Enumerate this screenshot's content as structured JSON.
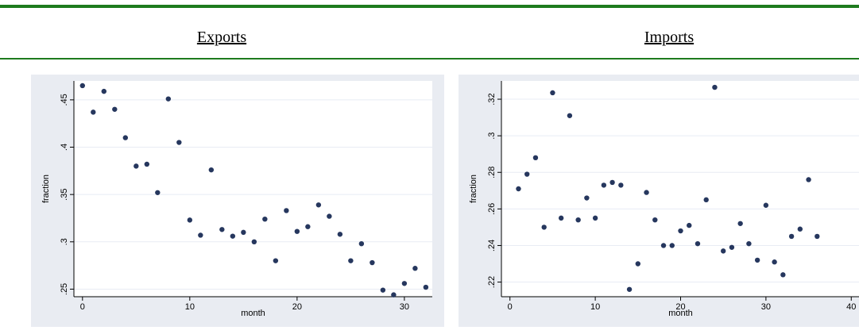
{
  "headings": {
    "exports": "Exports",
    "imports": "Imports"
  },
  "colors": {
    "rule": "#1e7b1e",
    "plot_bg": "#e9ecf2",
    "marker": "#26375e",
    "grid": "#ffffff"
  },
  "chart_data": [
    {
      "type": "scatter",
      "title": "",
      "xlabel": "month",
      "ylabel": "fraction",
      "xlim": [
        -0.8,
        32.6
      ],
      "ylim": [
        0.242,
        0.47
      ],
      "xticks": [
        0,
        10,
        20,
        30
      ],
      "xtick_labels": [
        "0",
        "10",
        "20",
        "30"
      ],
      "yticks": [
        0.25,
        0.3,
        0.35,
        0.4,
        0.45
      ],
      "ytick_labels": [
        ".25",
        ".3",
        ".35",
        ".4",
        ".45"
      ],
      "grid": true,
      "points": [
        {
          "x": 0,
          "y": 0.465
        },
        {
          "x": 1,
          "y": 0.437
        },
        {
          "x": 2,
          "y": 0.459
        },
        {
          "x": 3,
          "y": 0.44
        },
        {
          "x": 4,
          "y": 0.41
        },
        {
          "x": 5,
          "y": 0.38
        },
        {
          "x": 6,
          "y": 0.382
        },
        {
          "x": 7,
          "y": 0.352
        },
        {
          "x": 8,
          "y": 0.451
        },
        {
          "x": 9,
          "y": 0.405
        },
        {
          "x": 10,
          "y": 0.323
        },
        {
          "x": 11,
          "y": 0.307
        },
        {
          "x": 12,
          "y": 0.376
        },
        {
          "x": 13,
          "y": 0.313
        },
        {
          "x": 14,
          "y": 0.306
        },
        {
          "x": 15,
          "y": 0.31
        },
        {
          "x": 16,
          "y": 0.3
        },
        {
          "x": 17,
          "y": 0.324
        },
        {
          "x": 18,
          "y": 0.28
        },
        {
          "x": 19,
          "y": 0.333
        },
        {
          "x": 20,
          "y": 0.311
        },
        {
          "x": 21,
          "y": 0.316
        },
        {
          "x": 22,
          "y": 0.339
        },
        {
          "x": 23,
          "y": 0.327
        },
        {
          "x": 24,
          "y": 0.308
        },
        {
          "x": 25,
          "y": 0.28
        },
        {
          "x": 26,
          "y": 0.298
        },
        {
          "x": 27,
          "y": 0.278
        },
        {
          "x": 28,
          "y": 0.249
        },
        {
          "x": 29,
          "y": 0.244
        },
        {
          "x": 30,
          "y": 0.256
        },
        {
          "x": 31,
          "y": 0.272
        },
        {
          "x": 32,
          "y": 0.252
        }
      ]
    },
    {
      "type": "scatter",
      "title": "",
      "xlabel": "month",
      "ylabel": "fraction",
      "xlim": [
        -1,
        41
      ],
      "ylim": [
        0.212,
        0.33
      ],
      "xticks": [
        0,
        10,
        20,
        30,
        40
      ],
      "xtick_labels": [
        "0",
        "10",
        "20",
        "30",
        "40"
      ],
      "yticks": [
        0.22,
        0.24,
        0.26,
        0.28,
        0.3,
        0.32
      ],
      "ytick_labels": [
        ".22",
        ".24",
        ".26",
        ".28",
        ".3",
        ".32"
      ],
      "grid": true,
      "points": [
        {
          "x": 1,
          "y": 0.271
        },
        {
          "x": 2,
          "y": 0.279
        },
        {
          "x": 3,
          "y": 0.288
        },
        {
          "x": 4,
          "y": 0.25
        },
        {
          "x": 5,
          "y": 0.3235
        },
        {
          "x": 6,
          "y": 0.255
        },
        {
          "x": 7,
          "y": 0.311
        },
        {
          "x": 8,
          "y": 0.254
        },
        {
          "x": 9,
          "y": 0.266
        },
        {
          "x": 10,
          "y": 0.255
        },
        {
          "x": 11,
          "y": 0.273
        },
        {
          "x": 12,
          "y": 0.2745
        },
        {
          "x": 13,
          "y": 0.273
        },
        {
          "x": 14,
          "y": 0.216
        },
        {
          "x": 15,
          "y": 0.23
        },
        {
          "x": 16,
          "y": 0.269
        },
        {
          "x": 17,
          "y": 0.254
        },
        {
          "x": 18,
          "y": 0.24
        },
        {
          "x": 19,
          "y": 0.24
        },
        {
          "x": 20,
          "y": 0.248
        },
        {
          "x": 21,
          "y": 0.251
        },
        {
          "x": 22,
          "y": 0.241
        },
        {
          "x": 23,
          "y": 0.265
        },
        {
          "x": 24,
          "y": 0.3265
        },
        {
          "x": 25,
          "y": 0.237
        },
        {
          "x": 26,
          "y": 0.239
        },
        {
          "x": 27,
          "y": 0.252
        },
        {
          "x": 28,
          "y": 0.241
        },
        {
          "x": 29,
          "y": 0.232
        },
        {
          "x": 30,
          "y": 0.262
        },
        {
          "x": 31,
          "y": 0.231
        },
        {
          "x": 32,
          "y": 0.224
        },
        {
          "x": 33,
          "y": 0.245
        },
        {
          "x": 34,
          "y": 0.249
        },
        {
          "x": 35,
          "y": 0.276
        },
        {
          "x": 36,
          "y": 0.245
        }
      ]
    }
  ]
}
